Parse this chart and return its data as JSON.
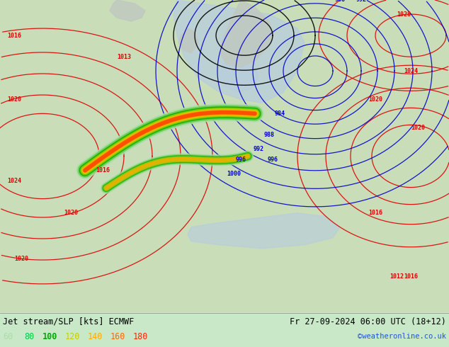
{
  "title_left": "Jet stream/SLP [kts] ECMWF",
  "title_right": "Fr 27-09-2024 06:00 UTC (18+12)",
  "attribution": "©weatheronline.co.uk",
  "legend_values": [
    60,
    80,
    100,
    120,
    140,
    160,
    180
  ],
  "legend_colors": [
    "#aaddaa",
    "#00cc44",
    "#00aa00",
    "#cccc00",
    "#ffaa00",
    "#ff6600",
    "#ff2200"
  ],
  "bottom_bg": "#ffffff",
  "fig_width": 6.34,
  "fig_height": 4.9,
  "dpi": 100,
  "map_bg_top": "#c8e8c8",
  "map_bg_bottom": "#c8e8c8",
  "sea_color": "#b8cce0",
  "land_color": "#c8ddb8",
  "red_line_color": "#dd0000",
  "blue_line_color": "#0000cc",
  "black_line_color": "#000000",
  "gray_land_color": "#c8c8c8",
  "contour_linewidth": 0.9,
  "label_fontsize": 6.0
}
